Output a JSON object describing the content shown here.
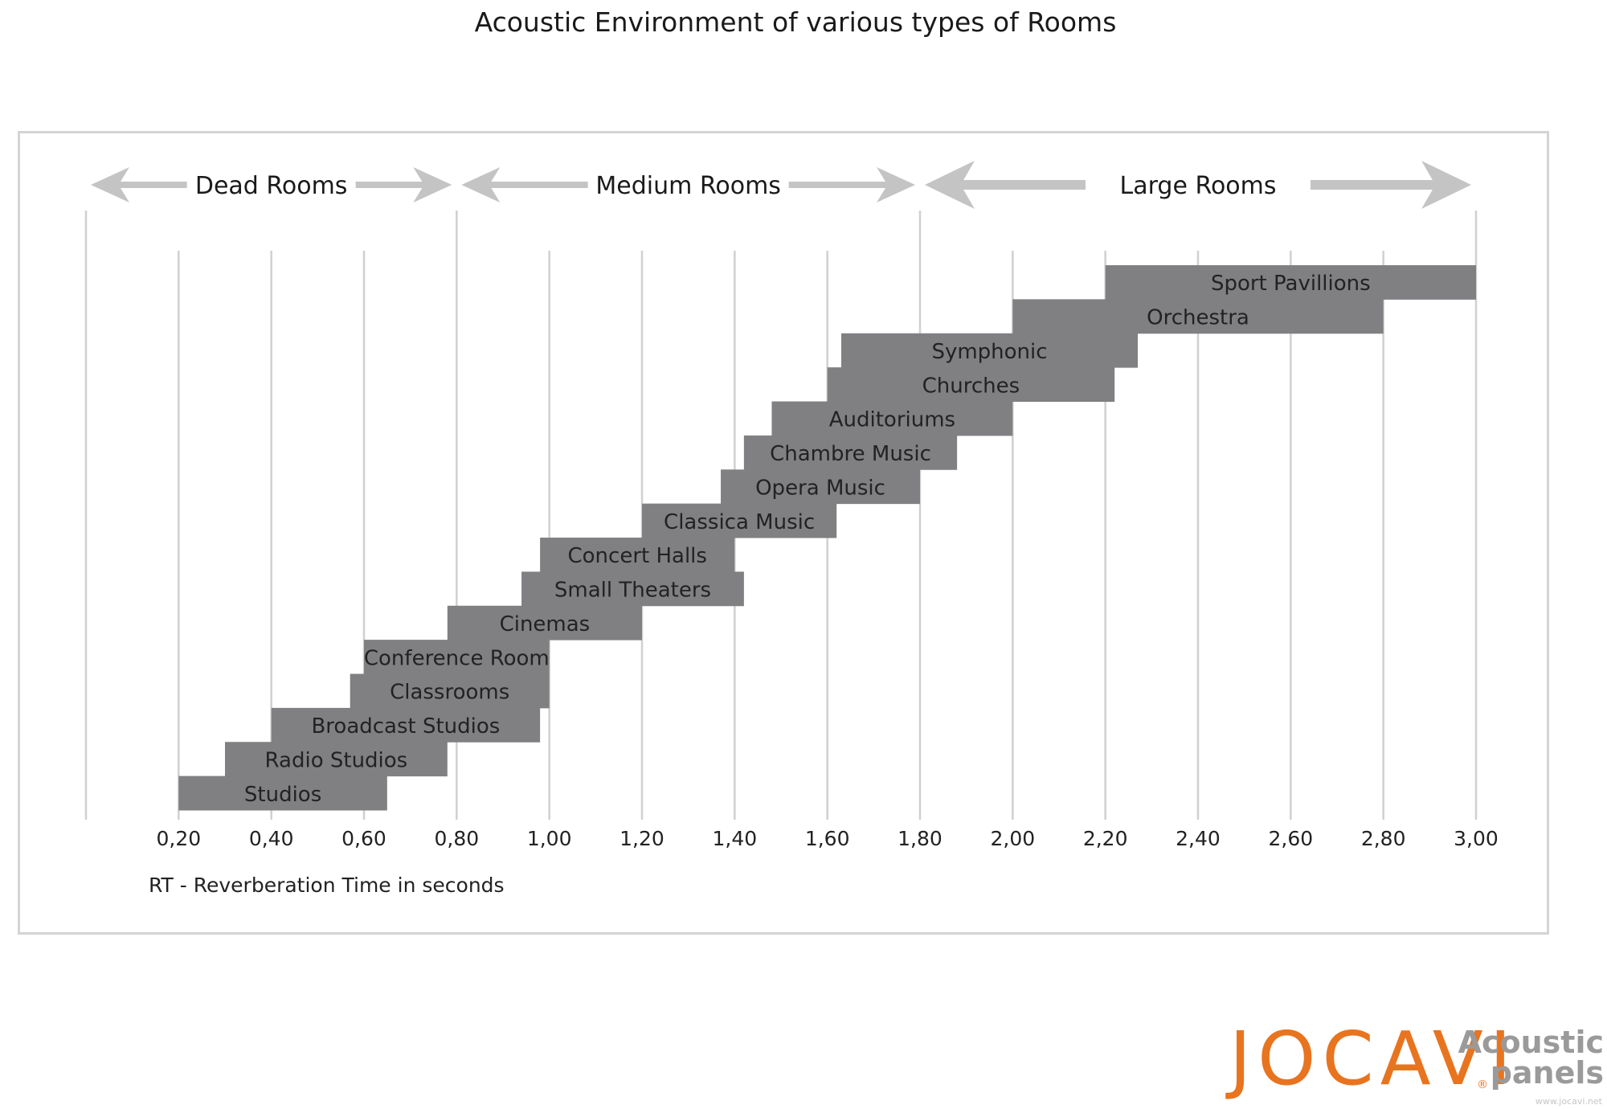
{
  "chart_data": {
    "type": "bar",
    "orientation": "horizontal-range",
    "title": "Acoustic Environment of various types of Rooms",
    "xlabel": "RT - Reverberation Time in seconds",
    "ylabel": "",
    "xlim": [
      0.0,
      3.0
    ],
    "x_ticks": [
      "0,20",
      "0,40",
      "0,60",
      "0,80",
      "1,00",
      "1,20",
      "1,40",
      "1,60",
      "1,80",
      "2,00",
      "2,20",
      "2,40",
      "2,60",
      "2,80",
      "3,00"
    ],
    "grid": true,
    "groups": [
      {
        "label": "Dead Rooms",
        "from": 0.0,
        "to": 0.8
      },
      {
        "label": "Medium Rooms",
        "from": 0.8,
        "to": 1.8
      },
      {
        "label": "Large  Rooms",
        "from": 1.8,
        "to": 3.0
      }
    ],
    "series": [
      {
        "name": "Studios",
        "start": 0.2,
        "end": 0.65
      },
      {
        "name": "Radio Studios",
        "start": 0.3,
        "end": 0.78
      },
      {
        "name": "Broadcast Studios",
        "start": 0.4,
        "end": 0.98
      },
      {
        "name": "Classrooms",
        "start": 0.57,
        "end": 1.0
      },
      {
        "name": "Conference Room",
        "start": 0.6,
        "end": 1.0
      },
      {
        "name": "Cinemas",
        "start": 0.78,
        "end": 1.2
      },
      {
        "name": "Small Theaters",
        "start": 0.94,
        "end": 1.42
      },
      {
        "name": "Concert Halls",
        "start": 0.98,
        "end": 1.4
      },
      {
        "name": "Classica Music",
        "start": 1.2,
        "end": 1.62
      },
      {
        "name": "Opera Music",
        "start": 1.37,
        "end": 1.8
      },
      {
        "name": "Chambre Music",
        "start": 1.42,
        "end": 1.88
      },
      {
        "name": "Auditoriums",
        "start": 1.48,
        "end": 2.0
      },
      {
        "name": "Churches",
        "start": 1.6,
        "end": 2.22
      },
      {
        "name": "Symphonic",
        "start": 1.63,
        "end": 2.27
      },
      {
        "name": "Orchestra",
        "start": 2.0,
        "end": 2.8
      },
      {
        "name": "Sport Pavillions",
        "start": 2.2,
        "end": 3.0
      }
    ],
    "bar_color": "#808083",
    "grid_color": "#d0d0d0",
    "arrow_color": "#c4c4c4"
  },
  "brand": {
    "name": "JOCAVI",
    "reg": "®",
    "tagline_1": "Acoustic",
    "tagline_2": "panels",
    "url": "www.jocavi.net",
    "color": "#e8741f",
    "tagline_color": "#9a9a9a"
  }
}
